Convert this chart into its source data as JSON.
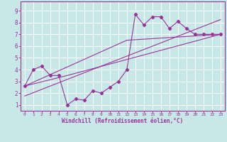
{
  "xlabel": "Windchill (Refroidissement éolien,°C)",
  "xlim": [
    -0.5,
    23.5
  ],
  "ylim": [
    0.5,
    9.8
  ],
  "xticks": [
    0,
    1,
    2,
    3,
    4,
    5,
    6,
    7,
    8,
    9,
    10,
    11,
    12,
    13,
    14,
    15,
    16,
    17,
    18,
    19,
    20,
    21,
    22,
    23
  ],
  "yticks": [
    1,
    2,
    3,
    4,
    5,
    6,
    7,
    8,
    9
  ],
  "bg_color": "#c8e8e8",
  "grid_color": "#ffffff",
  "line_color": "#993399",
  "figsize": [
    3.2,
    2.0
  ],
  "dpi": 100,
  "series1_x": [
    0,
    1,
    2,
    3,
    4,
    5,
    6,
    7,
    8,
    9,
    10,
    11,
    12,
    13,
    14,
    15,
    16,
    17,
    18,
    19,
    20,
    21,
    22,
    23
  ],
  "series1_y": [
    2.6,
    4.0,
    4.3,
    3.5,
    3.5,
    1.0,
    1.5,
    1.4,
    2.2,
    2.0,
    2.5,
    3.0,
    4.0,
    8.7,
    7.8,
    8.5,
    8.5,
    7.5,
    8.1,
    7.5,
    7.0,
    7.0,
    7.0,
    7.0
  ],
  "line2_x": [
    0,
    5,
    23
  ],
  "line2_y": [
    2.6,
    3.5,
    7.0
  ],
  "line3_x": [
    0,
    12,
    23
  ],
  "line3_y": [
    2.6,
    6.5,
    7.0
  ]
}
